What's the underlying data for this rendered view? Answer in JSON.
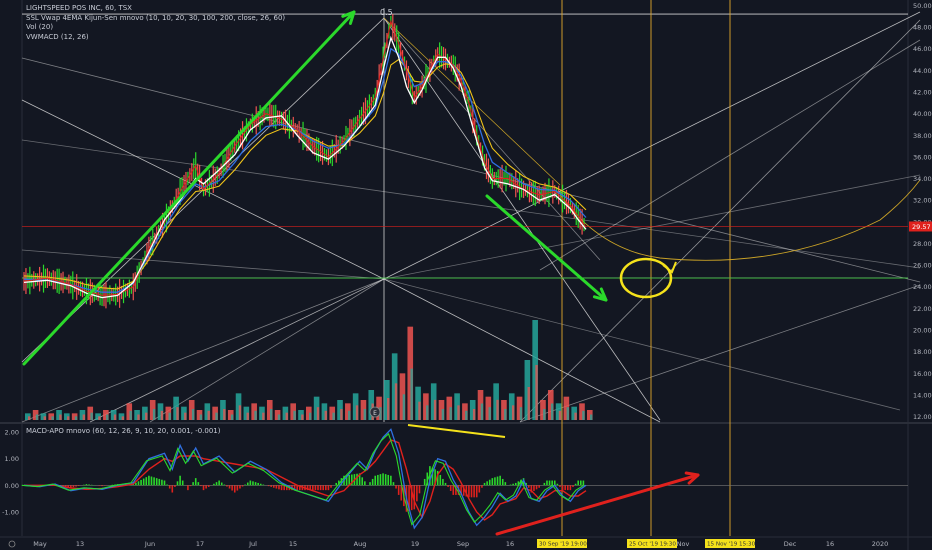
{
  "legend": {
    "title": "LIGHTSPEED POS INC, 60, TSX",
    "line2": "SSL Vwap 4EMA Kijun-Sen mnovo (10, 10, 20, 30, 100, 200, close, 26, 60)",
    "line3": "Vol (20)",
    "line4": "VWMACD (12, 26)"
  },
  "macd_legend": "MACD-APO mnovo (60, 12, 26, 9, 10, 20, 0.001, -0.001)",
  "fib_label": "0.5",
  "colors": {
    "background": "#131722",
    "green_arrow": "#2bd92b",
    "red_arrow": "#e0211d",
    "yellow_marker": "#f5e21b",
    "price_tag": "#e0211d",
    "candle_up": "#26a69a",
    "candle_down": "#ef5350",
    "gold_line": "#c9a227",
    "grid_white": "#e6e6e6"
  },
  "chart_data": [
    {
      "type": "line",
      "panel": "price",
      "y_ticks": [
        "50.00",
        "48.00",
        "46.00",
        "44.00",
        "42.00",
        "40.00",
        "38.00",
        "36.00",
        "34.00",
        "32.00",
        "30.00",
        "28.00",
        "26.00",
        "24.00",
        "22.00",
        "20.00",
        "18.00",
        "16.00",
        "14.00",
        "12.00"
      ],
      "ylim": [
        11.5,
        50.5
      ],
      "x_ticks": [
        "May",
        "13",
        "Jun",
        "17",
        "Jul",
        "15",
        "Aug",
        "19",
        "Sep",
        "16",
        "Oct",
        "Nov",
        "Dec",
        "16",
        "2020"
      ],
      "last_price": "29.57",
      "x_tags": [
        "30 Sep '19 19:00",
        "25 Oct '19 19:30",
        "15 Nov '19 15:30"
      ],
      "price_path": [
        [
          0,
          24.5
        ],
        [
          3,
          24.8
        ],
        [
          6,
          24.2
        ],
        [
          8,
          23.6
        ],
        [
          10,
          23.2
        ],
        [
          12,
          23.3
        ],
        [
          14,
          24.0
        ],
        [
          16,
          27.5
        ],
        [
          18,
          30.0
        ],
        [
          20,
          32.8
        ],
        [
          22,
          35.2
        ],
        [
          23,
          33.0
        ],
        [
          25,
          34.5
        ],
        [
          27,
          37.0
        ],
        [
          29,
          39.0
        ],
        [
          31,
          40.0
        ],
        [
          33,
          39.5
        ],
        [
          35,
          38.5
        ],
        [
          37,
          37.0
        ],
        [
          39,
          36.0
        ],
        [
          41,
          37.5
        ],
        [
          43,
          39.5
        ],
        [
          45,
          41.5
        ],
        [
          46,
          45.0
        ],
        [
          47,
          48.5
        ],
        [
          48,
          46.5
        ],
        [
          49,
          44.0
        ],
        [
          50,
          41.5
        ],
        [
          51,
          42.5
        ],
        [
          52,
          44.0
        ],
        [
          53,
          45.5
        ],
        [
          54,
          45.0
        ],
        [
          55,
          44.5
        ],
        [
          56,
          43.0
        ],
        [
          57,
          41.0
        ],
        [
          58,
          38.0
        ],
        [
          59,
          35.5
        ],
        [
          60,
          34.0
        ],
        [
          62,
          34.0
        ],
        [
          64,
          33.0
        ],
        [
          66,
          32.5
        ],
        [
          68,
          32.8
        ],
        [
          70,
          31.5
        ],
        [
          71,
          30.5
        ],
        [
          72,
          29.5
        ]
      ],
      "ema_path": [
        [
          0,
          24.7
        ],
        [
          3,
          24.6
        ],
        [
          6,
          24.2
        ],
        [
          8,
          23.8
        ],
        [
          10,
          23.5
        ],
        [
          12,
          23.5
        ],
        [
          14,
          24.3
        ],
        [
          16,
          27.0
        ],
        [
          18,
          29.5
        ],
        [
          20,
          31.8
        ],
        [
          22,
          33.5
        ],
        [
          23,
          33.2
        ],
        [
          25,
          33.8
        ],
        [
          27,
          35.5
        ],
        [
          29,
          37.5
        ],
        [
          31,
          38.8
        ],
        [
          33,
          39.0
        ],
        [
          35,
          38.5
        ],
        [
          37,
          37.5
        ],
        [
          39,
          36.8
        ],
        [
          41,
          37.2
        ],
        [
          43,
          38.8
        ],
        [
          45,
          40.5
        ],
        [
          46,
          43.0
        ],
        [
          47,
          46.0
        ],
        [
          48,
          45.5
        ],
        [
          49,
          44.0
        ],
        [
          50,
          42.5
        ],
        [
          51,
          42.8
        ],
        [
          52,
          43.8
        ],
        [
          53,
          44.8
        ],
        [
          54,
          44.8
        ],
        [
          55,
          44.5
        ],
        [
          56,
          43.5
        ],
        [
          57,
          41.8
        ],
        [
          58,
          39.5
        ],
        [
          59,
          37.2
        ],
        [
          60,
          35.5
        ],
        [
          62,
          34.5
        ],
        [
          64,
          33.5
        ],
        [
          66,
          33.0
        ],
        [
          68,
          32.9
        ],
        [
          70,
          32.0
        ],
        [
          71,
          31.2
        ],
        [
          72,
          30.4
        ]
      ],
      "band_path": [
        [
          0,
          25.0
        ],
        [
          3,
          24.9
        ],
        [
          6,
          24.6
        ],
        [
          8,
          24.2
        ],
        [
          10,
          23.9
        ],
        [
          12,
          23.8
        ],
        [
          14,
          24.5
        ],
        [
          16,
          26.5
        ],
        [
          18,
          29.0
        ],
        [
          20,
          31.2
        ],
        [
          22,
          32.8
        ],
        [
          23,
          32.9
        ],
        [
          25,
          33.3
        ],
        [
          27,
          34.8
        ],
        [
          29,
          36.6
        ],
        [
          31,
          38.0
        ],
        [
          33,
          38.6
        ],
        [
          35,
          38.4
        ],
        [
          37,
          37.7
        ],
        [
          39,
          37.0
        ],
        [
          41,
          37.1
        ],
        [
          43,
          38.2
        ],
        [
          45,
          39.8
        ],
        [
          46,
          41.8
        ],
        [
          47,
          44.5
        ],
        [
          48,
          45.0
        ],
        [
          49,
          44.2
        ],
        [
          50,
          43.0
        ],
        [
          51,
          42.9
        ],
        [
          52,
          43.5
        ],
        [
          53,
          44.3
        ],
        [
          54,
          44.6
        ],
        [
          55,
          44.5
        ],
        [
          56,
          43.8
        ],
        [
          57,
          42.4
        ],
        [
          58,
          40.5
        ],
        [
          59,
          38.5
        ],
        [
          60,
          36.8
        ],
        [
          62,
          35.3
        ],
        [
          64,
          34.2
        ],
        [
          66,
          33.5
        ],
        [
          68,
          33.2
        ],
        [
          70,
          32.5
        ],
        [
          71,
          31.8
        ],
        [
          72,
          31.1
        ]
      ],
      "vwap_path": [
        [
          0,
          24.4
        ],
        [
          3,
          24.6
        ],
        [
          6,
          24.1
        ],
        [
          8,
          23.4
        ],
        [
          10,
          23.0
        ],
        [
          12,
          23.2
        ],
        [
          14,
          24.4
        ],
        [
          16,
          27.2
        ],
        [
          18,
          30.2
        ],
        [
          20,
          32.0
        ],
        [
          22,
          34.0
        ],
        [
          23,
          33.5
        ],
        [
          25,
          34.8
        ],
        [
          27,
          36.2
        ],
        [
          29,
          38.5
        ],
        [
          31,
          39.6
        ],
        [
          33,
          39.8
        ],
        [
          35,
          38.0
        ],
        [
          37,
          36.4
        ],
        [
          39,
          35.8
        ],
        [
          41,
          37.0
        ],
        [
          43,
          38.8
        ],
        [
          45,
          40.8
        ],
        [
          46,
          44.0
        ],
        [
          47,
          47.0
        ],
        [
          48,
          45.2
        ],
        [
          49,
          42.5
        ],
        [
          50,
          41.0
        ],
        [
          51,
          42.2
        ],
        [
          52,
          43.8
        ],
        [
          53,
          45.2
        ],
        [
          54,
          45.2
        ],
        [
          55,
          44.2
        ],
        [
          56,
          42.5
        ],
        [
          57,
          40.0
        ],
        [
          58,
          37.5
        ],
        [
          59,
          35.0
        ],
        [
          60,
          33.8
        ],
        [
          62,
          33.5
        ],
        [
          64,
          33.0
        ],
        [
          66,
          32.0
        ],
        [
          68,
          32.5
        ],
        [
          70,
          31.2
        ],
        [
          71,
          30.2
        ],
        [
          72,
          29.3
        ]
      ],
      "levels": [
        29.57,
        24.8
      ]
    },
    {
      "type": "bar",
      "panel": "volume",
      "values": [
        2,
        3,
        2,
        2,
        3,
        2,
        2,
        3,
        4,
        2,
        3,
        3,
        2,
        5,
        3,
        4,
        6,
        5,
        4,
        7,
        4,
        6,
        3,
        5,
        4,
        6,
        3,
        8,
        4,
        5,
        4,
        6,
        3,
        4,
        5,
        3,
        4,
        7,
        5,
        4,
        6,
        5,
        8,
        6,
        9,
        7,
        12,
        20,
        14,
        28,
        10,
        8,
        11,
        6,
        7,
        8,
        5,
        6,
        9,
        7,
        11,
        6,
        8,
        7,
        18,
        30,
        6,
        9,
        5,
        7,
        4,
        5,
        3
      ],
      "up": [
        1,
        0,
        1,
        0,
        1,
        1,
        0,
        1,
        0,
        1,
        0,
        1,
        1,
        0,
        1,
        1,
        0,
        1,
        0,
        1,
        1,
        0,
        0,
        1,
        0,
        1,
        0,
        1,
        1,
        0,
        1,
        0,
        0,
        1,
        0,
        1,
        0,
        1,
        1,
        0,
        1,
        0,
        1,
        0,
        1,
        0,
        1,
        1,
        0,
        0,
        1,
        0,
        1,
        0,
        0,
        1,
        0,
        1,
        0,
        0,
        1,
        0,
        1,
        0,
        1,
        1,
        0,
        0,
        1,
        0,
        1,
        0,
        0
      ]
    },
    {
      "type": "line",
      "panel": "macd",
      "y_ticks": [
        "2.00",
        "1.00",
        "0.00",
        "-1.00"
      ],
      "ylim": [
        -1.9,
        2.3
      ],
      "macd_path": [
        [
          0,
          0.0
        ],
        [
          2,
          -0.05
        ],
        [
          4,
          0.05
        ],
        [
          6,
          -0.2
        ],
        [
          8,
          -0.1
        ],
        [
          10,
          -0.15
        ],
        [
          12,
          0.0
        ],
        [
          14,
          0.1
        ],
        [
          16,
          1.0
        ],
        [
          18,
          1.2
        ],
        [
          19,
          0.6
        ],
        [
          20,
          1.5
        ],
        [
          21,
          0.9
        ],
        [
          22,
          1.4
        ],
        [
          23,
          0.8
        ],
        [
          25,
          1.1
        ],
        [
          27,
          0.5
        ],
        [
          29,
          0.9
        ],
        [
          31,
          0.6
        ],
        [
          33,
          0.1
        ],
        [
          35,
          -0.2
        ],
        [
          37,
          -0.4
        ],
        [
          39,
          -0.6
        ],
        [
          41,
          0.2
        ],
        [
          43,
          0.9
        ],
        [
          44,
          0.6
        ],
        [
          45,
          1.3
        ],
        [
          46,
          1.8
        ],
        [
          47,
          2.1
        ],
        [
          48,
          1.2
        ],
        [
          49,
          -0.5
        ],
        [
          50,
          -1.6
        ],
        [
          51,
          -1.2
        ],
        [
          52,
          0.2
        ],
        [
          53,
          1.0
        ],
        [
          54,
          0.9
        ],
        [
          55,
          0.2
        ],
        [
          56,
          -0.3
        ],
        [
          57,
          -1.0
        ],
        [
          58,
          -1.5
        ],
        [
          59,
          -1.2
        ],
        [
          60,
          -0.8
        ],
        [
          61,
          -0.3
        ],
        [
          62,
          -0.6
        ],
        [
          63,
          -0.4
        ],
        [
          64,
          0.2
        ],
        [
          65,
          -0.5
        ],
        [
          66,
          -0.6
        ],
        [
          67,
          -0.2
        ],
        [
          68,
          0.0
        ],
        [
          69,
          -0.4
        ],
        [
          70,
          -0.6
        ],
        [
          71,
          -0.2
        ],
        [
          72,
          0.0
        ]
      ],
      "signal_path": [
        [
          0,
          0.0
        ],
        [
          2,
          0.0
        ],
        [
          4,
          0.0
        ],
        [
          6,
          -0.1
        ],
        [
          8,
          -0.15
        ],
        [
          10,
          -0.12
        ],
        [
          12,
          -0.05
        ],
        [
          14,
          0.05
        ],
        [
          16,
          0.6
        ],
        [
          18,
          1.0
        ],
        [
          19,
          0.9
        ],
        [
          20,
          1.1
        ],
        [
          21,
          1.1
        ],
        [
          22,
          1.1
        ],
        [
          23,
          1.0
        ],
        [
          25,
          0.9
        ],
        [
          27,
          0.8
        ],
        [
          29,
          0.7
        ],
        [
          31,
          0.6
        ],
        [
          33,
          0.3
        ],
        [
          35,
          0.0
        ],
        [
          37,
          -0.2
        ],
        [
          39,
          -0.4
        ],
        [
          41,
          -0.2
        ],
        [
          43,
          0.4
        ],
        [
          44,
          0.6
        ],
        [
          45,
          0.9
        ],
        [
          46,
          1.3
        ],
        [
          47,
          1.7
        ],
        [
          48,
          1.6
        ],
        [
          49,
          0.6
        ],
        [
          50,
          -0.6
        ],
        [
          51,
          -1.2
        ],
        [
          52,
          -0.6
        ],
        [
          53,
          0.4
        ],
        [
          54,
          0.8
        ],
        [
          55,
          0.6
        ],
        [
          56,
          0.1
        ],
        [
          57,
          -0.5
        ],
        [
          58,
          -1.0
        ],
        [
          59,
          -1.3
        ],
        [
          60,
          -1.1
        ],
        [
          61,
          -0.7
        ],
        [
          62,
          -0.6
        ],
        [
          63,
          -0.5
        ],
        [
          64,
          -0.1
        ],
        [
          65,
          -0.2
        ],
        [
          66,
          -0.5
        ],
        [
          67,
          -0.4
        ],
        [
          68,
          -0.2
        ],
        [
          69,
          -0.2
        ],
        [
          70,
          -0.4
        ],
        [
          71,
          -0.4
        ],
        [
          72,
          -0.2
        ]
      ]
    }
  ]
}
